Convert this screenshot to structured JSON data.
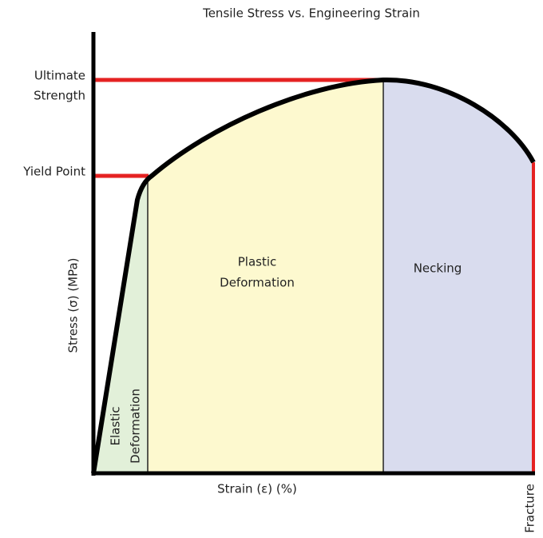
{
  "title": "Tensile Stress vs. Engineering Strain",
  "x_axis_label": "Strain (ε) (%)",
  "y_axis_label": "Stress (σ) (MPa)",
  "markers": {
    "ultimate_strength": [
      "Ultimate",
      "Strength"
    ],
    "yield_point": "Yield Point",
    "fracture": "Fracture"
  },
  "regions": {
    "elastic": [
      "Elastic",
      "Deformation"
    ],
    "plastic": [
      "Plastic",
      "Deformation"
    ],
    "necking": "Necking"
  }
}
